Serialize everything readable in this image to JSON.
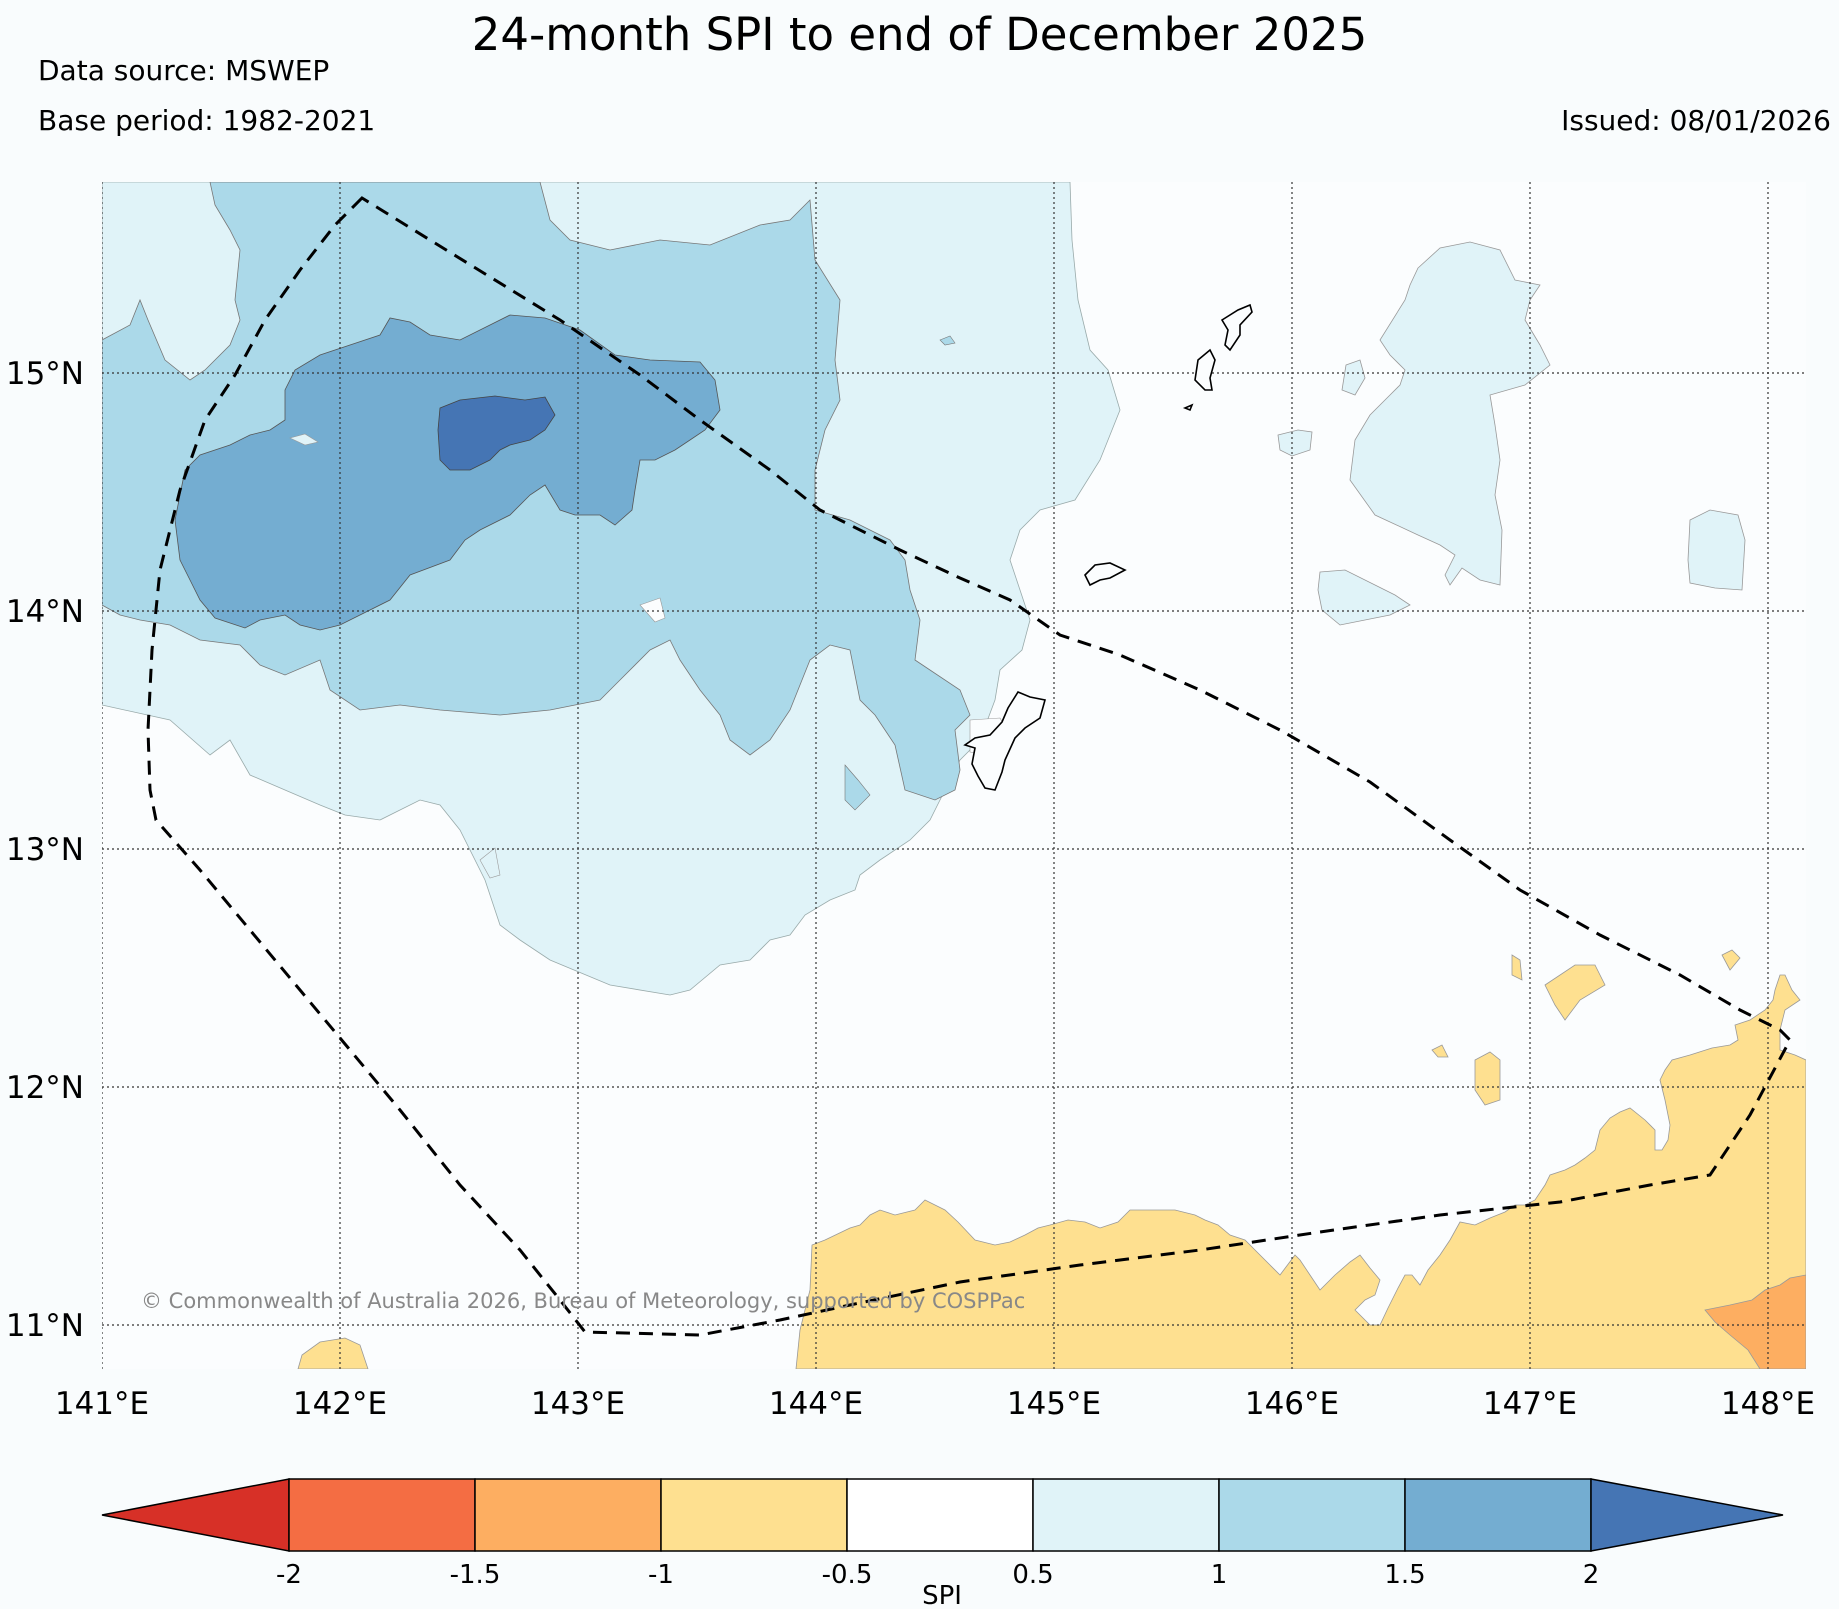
{
  "header": {
    "title": "24-month SPI to end of December 2025",
    "source": "Data source: MSWEP",
    "base_period": "Base period: 1982-2021",
    "issued": "Issued: 08/01/2026"
  },
  "map": {
    "copyright": "© Commonwealth of Australia 2026, Bureau of Meteorology, supported by COSPPac",
    "lon_range": [
      141,
      148.2
    ],
    "lat_range": [
      10.8,
      15.8
    ]
  },
  "axes": {
    "lon_labels": [
      "141°E",
      "142°E",
      "143°E",
      "144°E",
      "145°E",
      "146°E",
      "147°E",
      "148°E"
    ],
    "lat_labels": [
      "15°N",
      "14°N",
      "13°N",
      "12°N",
      "11°N"
    ]
  },
  "colorbar": {
    "title": "SPI",
    "ticks": [
      "-2",
      "-1.5",
      "-1",
      "-0.5",
      "0.5",
      "1",
      "1.5",
      "2"
    ],
    "colors": {
      "below_-2": "#d73027",
      "-2_-1.5": "#f46d43",
      "-1.5_-1": "#fdae61",
      "-1_-0.5": "#fee090",
      "-0.5_0.5": "#ffffff",
      "0.5_1": "#e0f3f8",
      "1_1.5": "#abd9e9",
      "1.5_2": "#74add1",
      "above_2": "#4575b4"
    }
  }
}
